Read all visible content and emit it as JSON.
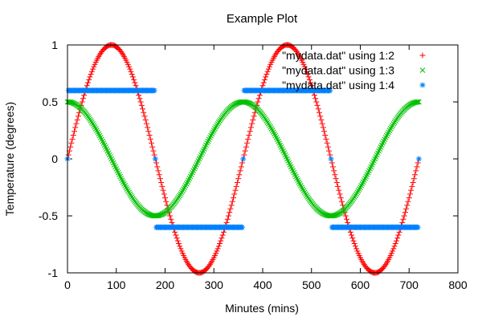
{
  "chart_data": {
    "type": "scatter",
    "title": "Example Plot",
    "xlabel": "Minutes (mins)",
    "ylabel": "Temperature (degrees)",
    "xlim": [
      0,
      800
    ],
    "ylim": [
      -1,
      1
    ],
    "xticks": [
      0,
      100,
      200,
      300,
      400,
      500,
      600,
      700,
      800
    ],
    "xtick_labels": [
      "0",
      "100",
      "200",
      "300",
      "400",
      "500",
      "600",
      "700",
      "800"
    ],
    "yticks": [
      -1,
      -0.5,
      0,
      0.5,
      1
    ],
    "ytick_labels": [
      "-1",
      "-0.5",
      "0",
      "0.5",
      "1"
    ],
    "grid": false,
    "legend_position": "top-right",
    "x_range": [
      0,
      720
    ],
    "x_step": 2,
    "series": [
      {
        "name": "\"mydata.dat\" using 1:2",
        "marker": "plus",
        "color": "#ff0000",
        "formula": "sin(x deg)"
      },
      {
        "name": "\"mydata.dat\" using 1:3",
        "marker": "cross",
        "color": "#00c000",
        "formula": "0.5*cos(x deg)"
      },
      {
        "name": "\"mydata.dat\" using 1:4",
        "marker": "star",
        "color": "#0080ff",
        "formula": "0.6*sign(sin(x deg))"
      }
    ]
  }
}
